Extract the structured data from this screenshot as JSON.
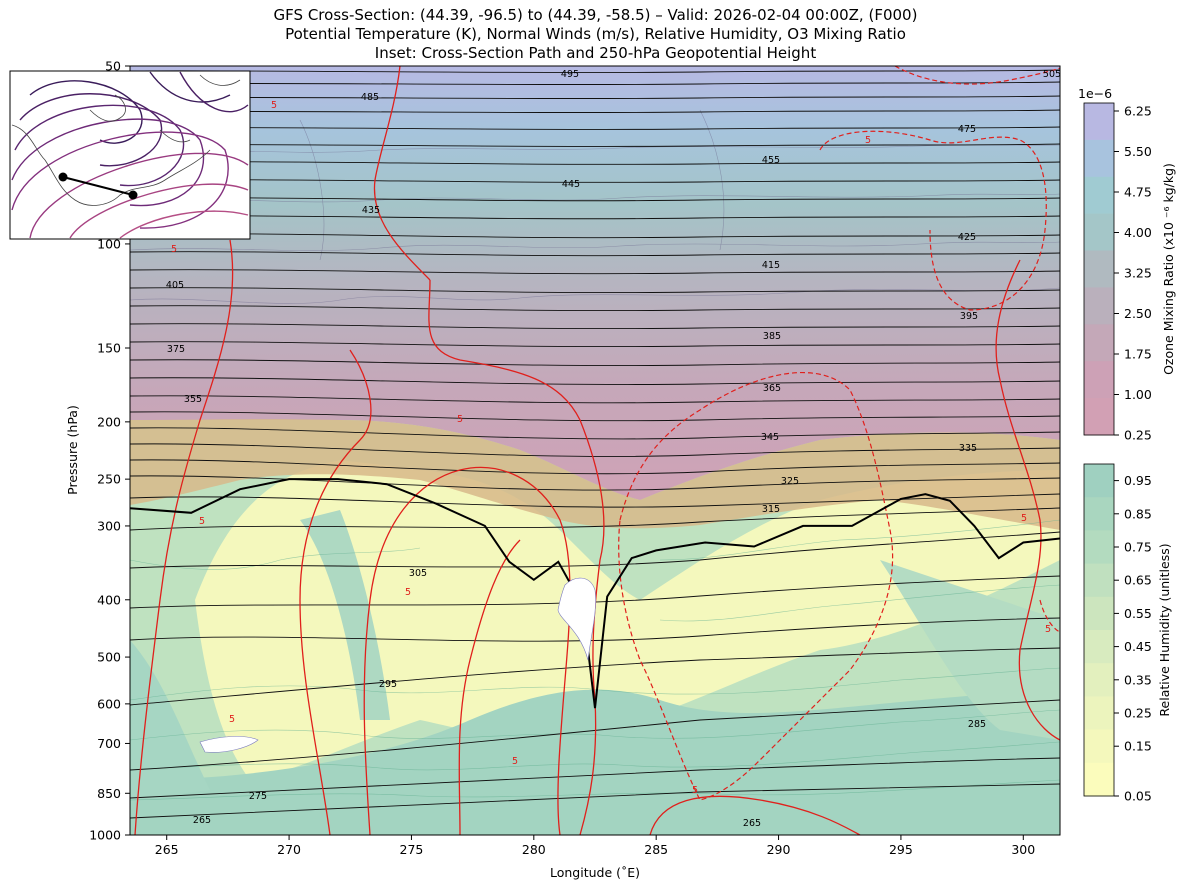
{
  "titles": {
    "line1": "GFS Cross-Section: (44.39, -96.5) to (44.39, -58.5) – Valid: 2026-02-04 00:00Z, (F000)",
    "line2": "Potential Temperature (K), Normal Winds (m/s), Relative Humidity, O3 Mixing Ratio",
    "line3": "Inset: Cross-Section Path and 250-hPa Geopotential Height"
  },
  "chart_data": {
    "type": "heatmap",
    "xlabel": "Longitude (˚E)",
    "ylabel": "Pressure (hPa)",
    "xlim": [
      263.5,
      301.5
    ],
    "ylim": [
      1000,
      50
    ],
    "yscale": "log",
    "x_ticks": [
      265,
      270,
      275,
      280,
      285,
      290,
      295,
      300
    ],
    "y_ticks": [
      1000,
      850,
      700,
      600,
      500,
      400,
      300,
      250,
      200,
      150,
      100,
      50
    ],
    "colorbars": [
      {
        "label": "Ozone Mixing Ratio (x10 ⁻⁶ kg/kg)",
        "exponent": "1e−6",
        "ticks": [
          "6.25",
          "5.50",
          "4.75",
          "4.00",
          "3.25",
          "2.50",
          "1.75",
          "1.00",
          "0.25"
        ],
        "colors": [
          "#b8b8e2",
          "#a8c3de",
          "#a0cbd2",
          "#a4c6c8",
          "#b0bac0",
          "#bab0bc",
          "#c4a8b8",
          "#cda1b6",
          "#d2a0b4"
        ]
      },
      {
        "label": "Relative Humidity (unitless)",
        "ticks": [
          "0.95",
          "0.85",
          "0.75",
          "0.65",
          "0.55",
          "0.45",
          "0.35",
          "0.25",
          "0.15",
          "0.05"
        ],
        "colors": [
          "#9fd0c0",
          "#a9d6bf",
          "#b3dbbf",
          "#c0e0bf",
          "#ccE5be",
          "#d8ebbf",
          "#e3f0be",
          "#ecf4bd",
          "#f4f8bc",
          "#fbfcbc"
        ]
      }
    ],
    "potential_temperature_labels": [
      "505",
      "495",
      "485",
      "475",
      "455",
      "445",
      "435",
      "425",
      "415",
      "405",
      "395",
      "385",
      "375",
      "365",
      "355",
      "345",
      "335",
      "325",
      "315",
      "305",
      "295",
      "285",
      "275",
      "265",
      "265"
    ],
    "normal_wind_labels": [
      "5",
      "5",
      "5",
      "5",
      "5",
      "5",
      "5",
      "5",
      "5",
      "5",
      "5"
    ],
    "tropopause_profile": {
      "lon": [
        263.5,
        266,
        268,
        270,
        272,
        274,
        276,
        278,
        279,
        280,
        281,
        282,
        282.5,
        283,
        284,
        285,
        287,
        289,
        291,
        293,
        295,
        296,
        297,
        298,
        299,
        300,
        301.5
      ],
      "p": [
        280,
        285,
        260,
        250,
        250,
        255,
        275,
        300,
        345,
        370,
        345,
        410,
        610,
        395,
        340,
        330,
        320,
        325,
        300,
        300,
        270,
        265,
        272,
        300,
        340,
        320,
        315
      ]
    },
    "inset_path": {
      "start_lon": -96.5,
      "end_lon": -58.5,
      "lat": 44.39
    }
  }
}
